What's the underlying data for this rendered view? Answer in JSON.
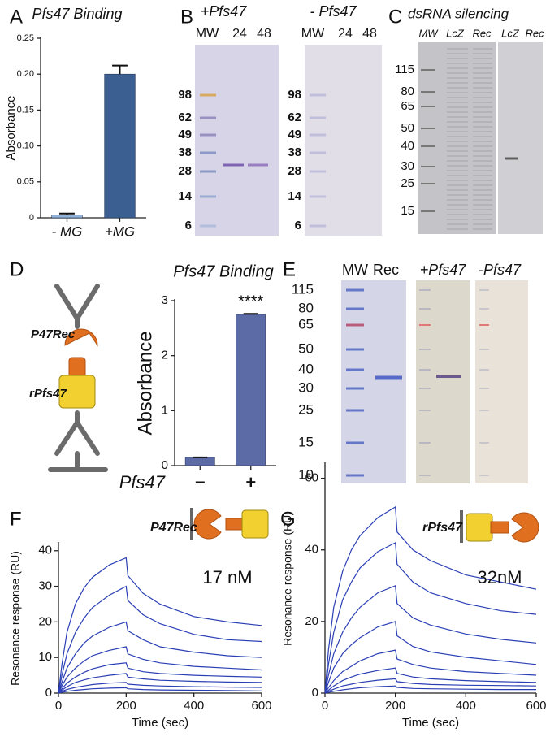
{
  "panel_labels": [
    "A",
    "B",
    "C",
    "D",
    "E",
    "F",
    "G"
  ],
  "chart_data": [
    {
      "type": "bar",
      "title": "Pfs47 Binding",
      "ylabel": "Absorbance",
      "categories": [
        "- MG",
        "+MG"
      ],
      "values": [
        0.004,
        0.2
      ],
      "errors": [
        0.002,
        0.012
      ],
      "colors": [
        "#8fb3d9",
        "#3b5f91"
      ],
      "ylim": [
        0,
        0.25
      ],
      "yticks": [
        0,
        0.05,
        {
          "value": 0.1,
          "label": "0.10"
        },
        0.15,
        {
          "value": 0.2,
          "label": "0.20"
        },
        0.25
      ]
    },
    {
      "type": "bar",
      "title": "Pfs47 Binding",
      "ylabel": "Absorbance",
      "xlabel": "Pfs47",
      "categories": [
        "−",
        "+"
      ],
      "values": [
        0.15,
        2.75
      ],
      "errors": [
        0,
        0.01
      ],
      "colors": [
        "#5c6aa6",
        "#5c6aa6"
      ],
      "annotation": "****",
      "ylim": [
        0,
        3
      ],
      "yticks": [
        0,
        1,
        2,
        3
      ]
    },
    {
      "type": "line",
      "xlabel": "Time (sec)",
      "ylabel": "Resonance response (RU)",
      "inset_label": "P47Rec",
      "annotation": "17 nM",
      "x": [
        0,
        10,
        25,
        50,
        75,
        100,
        150,
        200,
        205,
        250,
        300,
        400,
        500,
        600
      ],
      "xlim": [
        0,
        600
      ],
      "xticks": [
        0,
        200,
        400,
        600
      ],
      "ylim": [
        0,
        42
      ],
      "yticks": [
        0,
        10,
        20,
        30,
        40
      ],
      "color": "#2b3fb5",
      "series": [
        {
          "values": [
            0,
            8,
            17,
            25,
            29.5,
            32.5,
            36,
            38,
            33,
            28,
            25,
            21.5,
            20,
            19
          ]
        },
        {
          "values": [
            0,
            5,
            11,
            17,
            21,
            24,
            27.5,
            30,
            26,
            22,
            19.5,
            16.5,
            15,
            14.5
          ]
        },
        {
          "values": [
            0,
            3,
            7,
            11,
            14,
            16,
            18.5,
            20,
            17.5,
            15,
            13,
            11.5,
            10.5,
            10
          ]
        },
        {
          "values": [
            0,
            2,
            4.5,
            7,
            9,
            10.5,
            12,
            13,
            11,
            9.5,
            8.5,
            7.5,
            7,
            6.5
          ]
        },
        {
          "values": [
            0,
            1.2,
            2.8,
            4.5,
            5.8,
            6.8,
            8,
            8.5,
            7,
            6,
            5.5,
            5,
            4.7,
            4.5
          ]
        },
        {
          "values": [
            0,
            0.8,
            1.8,
            3,
            3.7,
            4.3,
            5,
            5.5,
            4.5,
            4,
            3.6,
            3.3,
            3.1,
            3
          ]
        },
        {
          "values": [
            0,
            0.5,
            1,
            1.6,
            2,
            2.4,
            2.8,
            3,
            2.5,
            2.2,
            2,
            1.8,
            1.7,
            1.6
          ]
        },
        {
          "values": [
            0,
            0.2,
            0.5,
            0.8,
            1,
            1.2,
            1.4,
            1.5,
            1.2,
            1,
            0.9,
            0.8,
            0.7,
            0.6
          ]
        }
      ]
    },
    {
      "type": "line",
      "xlabel": "Time (sec)",
      "ylabel": "Resonance response (RU)",
      "inset_label": "rPfs47",
      "annotation": "32nM",
      "x": [
        0,
        10,
        25,
        50,
        75,
        100,
        150,
        200,
        205,
        250,
        300,
        400,
        500,
        600
      ],
      "xlim": [
        0,
        600
      ],
      "xticks": [
        0,
        200,
        400,
        600
      ],
      "ylim": [
        0,
        64
      ],
      "yticks": [
        0,
        20,
        40,
        60
      ],
      "color": "#2b3fb5",
      "series": [
        {
          "values": [
            0,
            12,
            24,
            34,
            40,
            44,
            49,
            52,
            45,
            40,
            37,
            33,
            31,
            29
          ]
        },
        {
          "values": [
            0,
            8,
            17,
            26,
            31,
            35,
            39.5,
            42,
            36,
            31,
            28,
            25,
            23,
            22
          ]
        },
        {
          "values": [
            0,
            5,
            11,
            17,
            21,
            24,
            28,
            30,
            25,
            21,
            19,
            16.5,
            15,
            14
          ]
        },
        {
          "values": [
            0,
            3,
            7,
            11,
            13.5,
            15.5,
            18.5,
            20,
            16,
            13,
            11.5,
            10,
            9,
            8
          ]
        },
        {
          "values": [
            0,
            1.5,
            3.5,
            6,
            7.5,
            9,
            11,
            12,
            9.5,
            8,
            7,
            6,
            5.5,
            5
          ]
        },
        {
          "values": [
            0,
            0.8,
            2,
            3.5,
            4.5,
            5.3,
            6.3,
            7,
            5.5,
            4.5,
            4,
            3.5,
            3.2,
            3
          ]
        },
        {
          "values": [
            0,
            0.5,
            1.1,
            2,
            2.5,
            3,
            3.6,
            4,
            3.2,
            2.7,
            2.4,
            2.2,
            2.1,
            2
          ]
        },
        {
          "values": [
            0,
            0.2,
            0.5,
            0.9,
            1.2,
            1.5,
            1.8,
            2,
            1.6,
            1.3,
            1.2,
            1.1,
            1,
            1
          ]
        }
      ]
    }
  ],
  "gel_b": [
    {
      "title": "+Pfs47",
      "lanes": [
        "MW",
        "24",
        "48"
      ],
      "markers": [
        "98",
        "62",
        "49",
        "38",
        "28",
        "14",
        "6"
      ]
    },
    {
      "title": "- Pfs47",
      "lanes": [
        "MW",
        "24",
        "48"
      ],
      "markers": [
        "98",
        "62",
        "49",
        "38",
        "28",
        "14",
        "6"
      ]
    }
  ],
  "gel_c": {
    "title": "dsRNA silencing",
    "lanes": [
      "MW",
      "LcZ",
      "Rec",
      "LcZ",
      "Rec"
    ],
    "markers": [
      "115",
      "80",
      "65",
      "50",
      "40",
      "30",
      "25",
      "15"
    ]
  },
  "diagram_d": {
    "labels": [
      "P47Rec",
      "rPfs47"
    ]
  },
  "gel_e": {
    "lanes": [
      "MW",
      "Rec",
      "+Pfs47",
      "-Pfs47"
    ],
    "markers": [
      "115",
      "80",
      "65",
      "50",
      "40",
      "30",
      "25",
      "15",
      "10"
    ]
  }
}
